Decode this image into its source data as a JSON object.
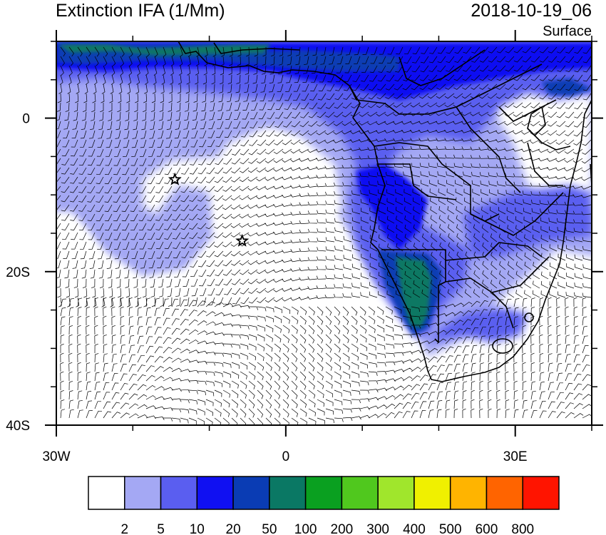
{
  "header": {
    "title": "Extinction IFA (1/Mm)",
    "datetime": "2018-10-19_06",
    "level": "Surface"
  },
  "axes": {
    "x_ticks": [
      {
        "value": -30,
        "label": "30W"
      },
      {
        "value": 0,
        "label": "0"
      },
      {
        "value": 30,
        "label": "30E"
      }
    ],
    "y_ticks": [
      {
        "value": 0,
        "label": "0"
      },
      {
        "value": -20,
        "label": "20S"
      },
      {
        "value": -40,
        "label": "40S"
      }
    ],
    "lon_range": [
      -30,
      40
    ],
    "lat_range": [
      -40,
      10
    ]
  },
  "markers": [
    {
      "name": "star",
      "lon": -14.5,
      "lat": -8.0
    },
    {
      "name": "star",
      "lon": -5.7,
      "lat": -16.0
    }
  ],
  "colorbar": {
    "colors": [
      "#ffffff",
      "#a4a8f4",
      "#5a5ef0",
      "#1010f2",
      "#0a3cb4",
      "#0a7864",
      "#0aa020",
      "#50c81e",
      "#a0e62c",
      "#f0f000",
      "#ffb400",
      "#ff6400",
      "#ff1400"
    ],
    "labels": [
      "2",
      "5",
      "10",
      "20",
      "50",
      "100",
      "200",
      "300",
      "400",
      "500",
      "600",
      "800"
    ]
  },
  "icons": [
    "star-icon",
    "wind-barb-icon"
  ]
}
